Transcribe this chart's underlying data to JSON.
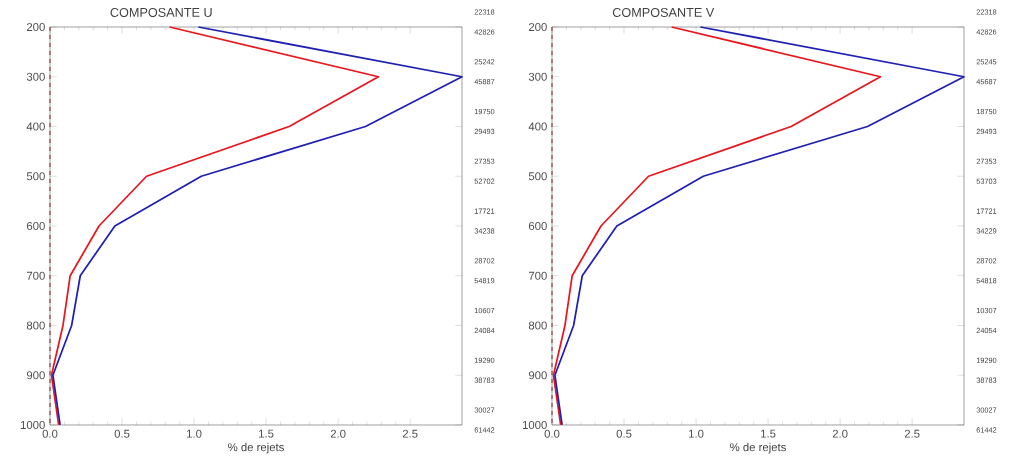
{
  "chart_data": [
    {
      "type": "line",
      "title": "COMPOSANTE U",
      "xlabel": "% de rejets",
      "xlim": [
        0,
        2.86
      ],
      "ylim": [
        1000,
        200
      ],
      "xticks": [
        {
          "value": 0,
          "label": "0.0"
        },
        {
          "value": 0.5,
          "label": "0.5"
        },
        {
          "value": 1,
          "label": "1.0"
        },
        {
          "value": 1.5,
          "label": "1.5"
        },
        {
          "value": 2,
          "label": "2.0"
        },
        {
          "value": 2.5,
          "label": "2.5"
        }
      ],
      "yticks": [
        200,
        300,
        400,
        500,
        600,
        700,
        800,
        900,
        1000
      ],
      "grid": false,
      "marker": "none",
      "line_style": "solid",
      "series": [
        {
          "color": "#e8161e",
          "x": [
            0.83,
            2.28,
            1.66,
            0.67,
            0.34,
            0.14,
            0.09,
            0.01,
            0.06
          ],
          "values": [
            200,
            300,
            400,
            500,
            600,
            700,
            800,
            900,
            1000
          ]
        },
        {
          "color": "#1f1fb4",
          "x": [
            1.03,
            2.86,
            2.19,
            1.05,
            0.45,
            0.21,
            0.15,
            0.02,
            0.07
          ],
          "values": [
            200,
            300,
            400,
            500,
            600,
            700,
            800,
            900,
            1000
          ]
        }
      ],
      "ref_lines": [
        {
          "axis": "x",
          "value": 0,
          "color": "#a05050",
          "line_style": "dashed"
        }
      ],
      "annotations": [
        "22318",
        "42826",
        "25242",
        "45887",
        "19750",
        "29493",
        "27353",
        "52702",
        "17721",
        "34238",
        "28702",
        "54819",
        "10607",
        "24084",
        "19290",
        "38783",
        "30027",
        "61442"
      ]
    },
    {
      "type": "line",
      "title": "COMPOSANTE V",
      "xlabel": "% de rejets",
      "xlim": [
        0,
        2.86
      ],
      "ylim": [
        1000,
        200
      ],
      "xticks": [
        {
          "value": 0,
          "label": "0.0"
        },
        {
          "value": 0.5,
          "label": "0.5"
        },
        {
          "value": 1,
          "label": "1.0"
        },
        {
          "value": 1.5,
          "label": "1.5"
        },
        {
          "value": 2,
          "label": "2.0"
        },
        {
          "value": 2.5,
          "label": "2.5"
        }
      ],
      "yticks": [
        200,
        300,
        400,
        500,
        600,
        700,
        800,
        900,
        1000
      ],
      "grid": false,
      "marker": "none",
      "line_style": "solid",
      "series": [
        {
          "color": "#e8161e",
          "x": [
            0.83,
            2.28,
            1.66,
            0.67,
            0.34,
            0.14,
            0.09,
            0.01,
            0.06
          ],
          "values": [
            200,
            300,
            400,
            500,
            600,
            700,
            800,
            900,
            1000
          ]
        },
        {
          "color": "#1f1fb4",
          "x": [
            1.03,
            2.86,
            2.19,
            1.05,
            0.45,
            0.21,
            0.15,
            0.02,
            0.07
          ],
          "values": [
            200,
            300,
            400,
            500,
            600,
            700,
            800,
            900,
            1000
          ]
        }
      ],
      "ref_lines": [
        {
          "axis": "x",
          "value": 0,
          "color": "#a05050",
          "line_style": "dashed"
        }
      ],
      "annotations": [
        "22318",
        "42826",
        "25245",
        "45687",
        "18750",
        "29493",
        "27353",
        "53703",
        "17721",
        "34229",
        "28702",
        "54818",
        "10307",
        "24054",
        "19290",
        "38783",
        "30027",
        "61442"
      ]
    }
  ]
}
